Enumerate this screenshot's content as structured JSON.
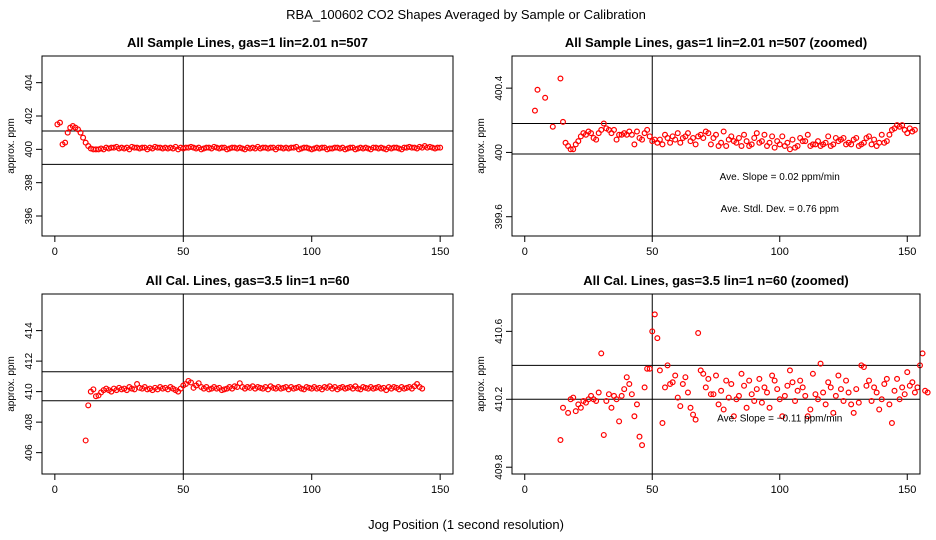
{
  "figure": {
    "title": "RBA_100602  CO2 Shapes Averaged by Sample or Calibration",
    "xlabel": "Jog Position (1 second resolution)"
  },
  "colors": {
    "points": "#ff0000",
    "lines": "#000000"
  },
  "chart_data": [
    {
      "type": "scatter",
      "title": "All Sample Lines, gas=1 lin=2.01 n=507",
      "ylabel": "approx. ppm",
      "xlim": [
        -5,
        155
      ],
      "ylim": [
        394.8,
        405.6
      ],
      "xticks": [
        0,
        50,
        100,
        150
      ],
      "yticks": [
        396,
        398,
        400,
        402,
        404
      ],
      "grid": false,
      "vline": 50,
      "hlines": [
        401.1,
        399.1
      ],
      "series": [
        {
          "x_start": 1,
          "x_step": 1,
          "values": [
            401.5,
            401.6,
            400.3,
            400.4,
            401.0,
            401.3,
            401.4,
            401.3,
            401.2,
            401.0,
            400.7,
            400.4,
            400.2,
            400.05,
            400.0,
            400.0,
            400.0,
            400.05,
            400.0,
            400.1,
            400.05,
            400.1,
            400.1,
            400.15,
            400.05,
            400.1,
            400.05,
            400.1,
            400.0,
            400.15,
            400.1,
            400.1,
            400.05,
            400.1,
            400.1,
            400.0,
            400.1,
            400.05,
            400.15,
            400.1,
            400.1,
            400.05,
            400.1,
            400.05,
            400.1,
            400.05,
            400.15,
            400.0,
            400.1,
            400.05,
            400.1,
            400.1,
            400.15,
            400.1,
            400.05,
            400.1,
            400.0,
            400.05,
            400.1,
            400.1,
            400.05,
            400.15,
            400.1,
            400.05,
            400.1,
            400.1,
            400.0,
            400.05,
            400.1,
            400.1,
            400.05,
            400.1,
            400.05,
            400.0,
            400.1,
            400.05,
            400.1,
            400.05,
            400.15,
            400.05,
            400.1,
            400.1,
            400.05,
            400.1,
            400.1,
            400.0,
            400.1,
            400.1,
            400.05,
            400.1,
            400.05,
            400.1,
            400.1,
            400.15,
            400.0,
            400.05,
            400.1,
            400.1,
            400.05,
            400.0,
            400.05,
            400.1,
            400.05,
            400.1,
            400.1,
            400.0,
            400.05,
            400.05,
            400.1,
            400.1,
            400.05,
            400.1,
            400.0,
            400.05,
            400.1,
            400.1,
            400.0,
            400.05,
            400.1,
            400.05,
            400.1,
            400.05,
            400.0,
            400.1,
            400.1,
            400.05,
            400.1,
            400.05,
            400.0,
            400.1,
            400.05,
            400.1,
            400.1,
            400.05,
            400.0,
            400.1,
            400.1,
            400.15,
            400.1,
            400.1,
            400.05,
            400.15,
            400.1,
            400.2,
            400.1,
            400.15,
            400.1,
            400.05,
            400.1,
            400.1
          ]
        }
      ],
      "annotations": []
    },
    {
      "type": "scatter",
      "title": "All Sample Lines, gas=1 lin=2.01 n=507 (zoomed)",
      "ylabel": "approx. ppm",
      "xlim": [
        -5,
        155
      ],
      "ylim": [
        399.48,
        400.6
      ],
      "xticks": [
        0,
        50,
        100,
        150
      ],
      "yticks": [
        399.6,
        400.0,
        400.4
      ],
      "grid": false,
      "vline": 50,
      "hlines": [
        400.18,
        399.99
      ],
      "series": [
        {
          "x_start": 4,
          "x_step": 1,
          "values": [
            400.26,
            400.39,
            null,
            null,
            400.34,
            null,
            null,
            400.16,
            null,
            null,
            400.46,
            400.19,
            400.06,
            400.04,
            400.02,
            400.02,
            400.05,
            400.07,
            400.1,
            400.12,
            400.11,
            400.13,
            400.12,
            400.09,
            400.08,
            400.12,
            400.14,
            400.18,
            400.15,
            400.14,
            400.12,
            400.14,
            400.08,
            400.11,
            400.11,
            400.12,
            400.11,
            400.13,
            400.11,
            400.05,
            400.13,
            400.09,
            400.08,
            400.12,
            400.14,
            400.1,
            400.07,
            400.08,
            400.06,
            400.08,
            400.05,
            400.11,
            400.09,
            400.06,
            400.1,
            400.08,
            400.12,
            400.06,
            400.09,
            400.1,
            400.12,
            400.07,
            400.09,
            400.05,
            400.1,
            400.11,
            400.09,
            400.13,
            400.12,
            400.05,
            400.09,
            400.11,
            400.04,
            400.06,
            400.13,
            400.04,
            400.08,
            400.1,
            400.07,
            400.06,
            400.09,
            400.04,
            400.11,
            400.07,
            400.04,
            400.05,
            400.09,
            400.12,
            400.06,
            400.07,
            400.11,
            400.04,
            400.06,
            400.1,
            400.03,
            400.07,
            400.05,
            400.1,
            400.04,
            400.06,
            400.02,
            400.08,
            400.03,
            400.04,
            400.09,
            400.07,
            400.07,
            400.11,
            400.04,
            400.05,
            400.05,
            400.07,
            400.04,
            400.05,
            400.06,
            400.1,
            400.04,
            400.05,
            400.09,
            400.07,
            400.08,
            400.09,
            400.05,
            400.06,
            400.05,
            400.08,
            400.09,
            400.04,
            400.05,
            400.06,
            400.09,
            400.1,
            400.05,
            400.08,
            400.04,
            400.06,
            400.11,
            400.06,
            400.07,
            400.11,
            400.14,
            400.15,
            400.17,
            400.16,
            400.17,
            400.14,
            400.12,
            400.15,
            400.13,
            400.14
          ]
        }
      ],
      "annotations": [
        {
          "text": "Ave. Slope =  0.02  ppm/min",
          "x": 100,
          "y": 399.83
        },
        {
          "text": "Ave. Stdl. Dev. =  0.76  ppm",
          "x": 100,
          "y": 399.63
        }
      ]
    },
    {
      "type": "scatter",
      "title": "All Cal. Lines, gas=3.5 lin=1 n=60",
      "ylabel": "approx. ppm",
      "xlim": [
        -5,
        155
      ],
      "ylim": [
        404.6,
        416.4
      ],
      "xticks": [
        0,
        50,
        100,
        150
      ],
      "yticks": [
        406,
        408,
        410,
        412,
        414
      ],
      "grid": false,
      "vline": 50,
      "hlines": [
        411.3,
        409.4
      ],
      "series": [
        {
          "x_start": 12,
          "x_step": 1,
          "values": [
            406.8,
            409.1,
            410.0,
            410.15,
            409.7,
            409.75,
            409.95,
            410.1,
            410.2,
            410.1,
            410.0,
            410.2,
            410.1,
            410.25,
            410.15,
            410.2,
            410.1,
            410.3,
            410.2,
            410.15,
            410.5,
            410.25,
            410.2,
            410.3,
            410.15,
            410.2,
            410.1,
            410.25,
            410.15,
            410.3,
            410.2,
            410.25,
            410.15,
            410.3,
            410.2,
            410.1,
            410.0,
            410.2,
            410.4,
            410.5,
            410.7,
            410.6,
            410.25,
            410.4,
            410.55,
            410.3,
            410.2,
            410.3,
            410.15,
            410.2,
            410.3,
            410.2,
            410.25,
            410.1,
            410.15,
            410.2,
            410.3,
            410.2,
            410.35,
            410.3,
            410.55,
            410.3,
            410.2,
            410.3,
            410.25,
            410.35,
            410.2,
            410.3,
            410.25,
            410.2,
            410.3,
            410.15,
            410.35,
            410.25,
            410.2,
            410.3,
            410.2,
            410.25,
            410.3,
            410.15,
            410.3,
            410.2,
            410.25,
            410.3,
            410.2,
            410.15,
            410.3,
            410.25,
            410.2,
            410.3,
            410.2,
            410.25,
            410.15,
            410.3,
            410.25,
            410.35,
            410.2,
            410.3,
            410.15,
            410.25,
            410.3,
            410.2,
            410.25,
            410.3,
            410.2,
            410.35,
            410.2,
            410.15,
            410.3,
            410.25,
            410.2,
            410.3,
            410.2,
            410.25,
            410.3,
            410.2,
            410.25,
            410.1,
            410.3,
            410.2,
            410.3,
            410.25,
            410.15,
            410.3,
            410.2,
            410.25,
            410.3,
            410.2,
            410.35,
            410.5,
            410.3,
            410.2
          ]
        }
      ],
      "annotations": []
    },
    {
      "type": "scatter",
      "title": "All Cal. Lines, gas=3.5 lin=1 n=60 (zoomed)",
      "ylabel": "approx. ppm",
      "xlim": [
        -5,
        155
      ],
      "ylim": [
        409.76,
        410.82
      ],
      "xticks": [
        0,
        50,
        100,
        150
      ],
      "yticks": [
        409.8,
        410.2,
        410.6
      ],
      "grid": false,
      "vline": 50,
      "hlines": [
        410.4,
        410.2
      ],
      "series": [
        {
          "x_start": 14,
          "x_step": 1,
          "values": [
            409.96,
            410.15,
            null,
            410.12,
            410.2,
            410.21,
            410.13,
            410.17,
            410.15,
            410.19,
            410.18,
            410.2,
            410.22,
            410.2,
            410.19,
            410.24,
            410.47,
            409.99,
            410.19,
            410.23,
            410.15,
            410.22,
            410.2,
            410.07,
            410.22,
            410.26,
            410.33,
            410.29,
            410.23,
            410.1,
            410.17,
            409.98,
            409.93,
            410.27,
            410.38,
            410.38,
            410.6,
            410.7,
            410.56,
            410.37,
            410.06,
            410.27,
            410.4,
            410.29,
            410.3,
            410.34,
            410.21,
            410.16,
            410.29,
            410.33,
            410.24,
            410.15,
            410.11,
            410.08,
            410.59,
            410.37,
            410.35,
            410.27,
            410.32,
            410.23,
            410.23,
            410.34,
            410.17,
            410.25,
            410.14,
            410.31,
            410.21,
            410.29,
            410.1,
            410.2,
            410.22,
            410.35,
            410.28,
            410.15,
            410.31,
            410.23,
            410.19,
            410.26,
            410.32,
            410.18,
            410.27,
            410.24,
            410.15,
            410.34,
            410.31,
            410.26,
            410.2,
            410.1,
            410.22,
            410.28,
            410.37,
            410.3,
            410.19,
            410.25,
            410.31,
            410.27,
            410.22,
            410.1,
            410.14,
            410.35,
            410.23,
            410.2,
            410.41,
            410.24,
            410.17,
            410.3,
            410.27,
            410.12,
            410.22,
            410.34,
            410.26,
            410.19,
            410.31,
            410.24,
            410.17,
            410.12,
            410.26,
            410.18,
            410.4,
            410.39,
            410.28,
            410.31,
            410.19,
            410.27,
            410.24,
            410.14,
            410.2,
            410.29,
            410.32,
            410.17,
            410.06,
            410.25,
            410.32,
            410.2,
            410.27,
            410.23,
            410.36,
            410.28,
            410.3,
            410.24,
            410.27,
            410.4,
            410.47,
            410.25,
            410.24
          ]
        }
      ],
      "annotations": [
        {
          "text": "Ave. Slope =  −0.11  ppm/min",
          "x": 100,
          "y": 410.07
        }
      ]
    }
  ]
}
